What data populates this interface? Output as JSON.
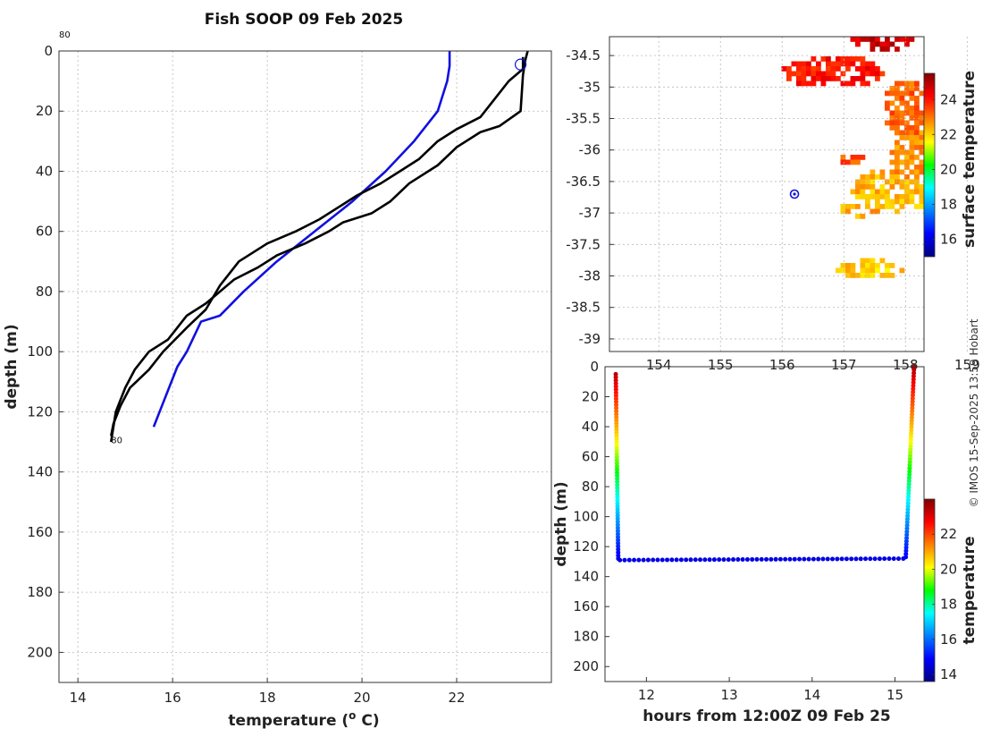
{
  "chart_data": [
    {
      "type": "line",
      "title": "Fish SOOP 09 Feb 2025",
      "xlabel": "temperature (",
      "xlabel_sup": "o",
      "xlabel_tail": " C)",
      "ylabel": "depth (m)",
      "xlim": [
        13.6,
        24.0
      ],
      "ylim": [
        210,
        0
      ],
      "xticks": [
        14,
        16,
        18,
        20,
        22
      ],
      "yticks": [
        0,
        20,
        40,
        60,
        80,
        100,
        120,
        140,
        160,
        180,
        200
      ],
      "grid": true,
      "annotations": [
        {
          "text": "80",
          "x": 13.6,
          "y": -4.5
        },
        {
          "text": "80",
          "x": 14.7,
          "y": 130.5
        }
      ],
      "series": [
        {
          "color": "#1010e0",
          "x": [
            21.85,
            21.85,
            21.8,
            21.6,
            21.1,
            20.5,
            19.8,
            19.0,
            18.2,
            17.5,
            17.0,
            16.6,
            16.3,
            16.1,
            15.9,
            15.75,
            15.6
          ],
          "y": [
            0,
            5,
            10,
            20,
            30,
            40,
            50,
            60,
            70,
            80,
            88,
            90,
            100,
            105,
            113,
            119,
            125
          ]
        },
        {
          "color": "#000000",
          "x": [
            23.5,
            23.45,
            23.4,
            23.35,
            22.9,
            22.5,
            22.0,
            21.6,
            21.0,
            20.6,
            20.2,
            19.6,
            19.3,
            18.8,
            18.2,
            17.8,
            17.3,
            17.0,
            16.7,
            16.3,
            16.1,
            15.9,
            15.5,
            15.2,
            15.0,
            14.9,
            14.8,
            14.75,
            14.7
          ],
          "y": [
            0,
            3,
            8,
            20,
            25,
            27,
            32,
            38,
            44,
            50,
            54,
            57,
            60,
            64,
            68,
            72,
            76,
            80,
            84,
            88,
            92,
            96,
            100,
            106,
            112,
            116,
            120,
            125,
            130
          ]
        },
        {
          "color": "#000000",
          "x": [
            14.7,
            14.75,
            14.9,
            15.1,
            15.5,
            15.8,
            16.3,
            16.7,
            17.0,
            17.4,
            18.0,
            18.6,
            19.1,
            19.5,
            19.9,
            20.4,
            20.8,
            21.2,
            21.6,
            22.0,
            22.5,
            22.8,
            23.1,
            23.4,
            23.4
          ],
          "y": [
            128,
            124,
            118,
            112,
            106,
            100,
            92,
            86,
            78,
            70,
            64,
            60,
            56,
            52,
            48,
            44,
            40,
            36,
            30,
            26,
            22,
            16,
            10,
            6,
            2
          ]
        }
      ],
      "marker": {
        "type": "open-circle",
        "x": 23.35,
        "y": 4.5,
        "color": "#1010e0"
      }
    },
    {
      "type": "heatmap",
      "title": "",
      "xlabel": "",
      "ylabel": "",
      "xlim": [
        153.2,
        158.3
      ],
      "ylim": [
        -39.2,
        -34.2
      ],
      "xticks": [
        154,
        155,
        156,
        157,
        158,
        159
      ],
      "yticks": [
        -34.5,
        -35,
        -35.5,
        -36,
        -36.5,
        -37,
        -37.5,
        -38,
        -38.5,
        -39
      ],
      "colorbar": {
        "label": "surface temperature",
        "ticks": [
          16,
          18,
          20,
          22,
          24
        ],
        "range": [
          15.0,
          25.5
        ]
      },
      "marker": {
        "type": "circle",
        "x": 156.2,
        "y": -36.7,
        "color": "#1010e0"
      }
    },
    {
      "type": "scatter",
      "title": "",
      "xlabel": "hours from 12:00Z 09 Feb 25",
      "ylabel": "depth (m)",
      "xlim": [
        11.5,
        15.35
      ],
      "ylim": [
        210,
        0
      ],
      "xticks": [
        12,
        13,
        14,
        15
      ],
      "yticks": [
        0,
        20,
        40,
        60,
        80,
        100,
        120,
        140,
        160,
        180,
        200
      ],
      "colorbar": {
        "label": "temperature",
        "ticks": [
          14,
          16,
          18,
          20,
          22
        ],
        "range": [
          13.6,
          24.0
        ]
      },
      "groups": [
        {
          "x_start": 11.63,
          "x_end": 11.66,
          "depth_start": 5,
          "depth_end": 128,
          "temp_start": 23.4,
          "temp_end": 14.7
        },
        {
          "x_start": 11.68,
          "x_end": 15.1,
          "depth_start": 129,
          "depth_end": 128,
          "temp_start": 14.6,
          "temp_end": 14.6
        },
        {
          "x_start": 15.13,
          "x_end": 15.23,
          "depth_start": 127,
          "depth_end": 0,
          "temp_start": 14.8,
          "temp_end": 23.5
        }
      ]
    }
  ],
  "watermark": "© IMOS 15-Sep-2025 13:59 Hobart"
}
